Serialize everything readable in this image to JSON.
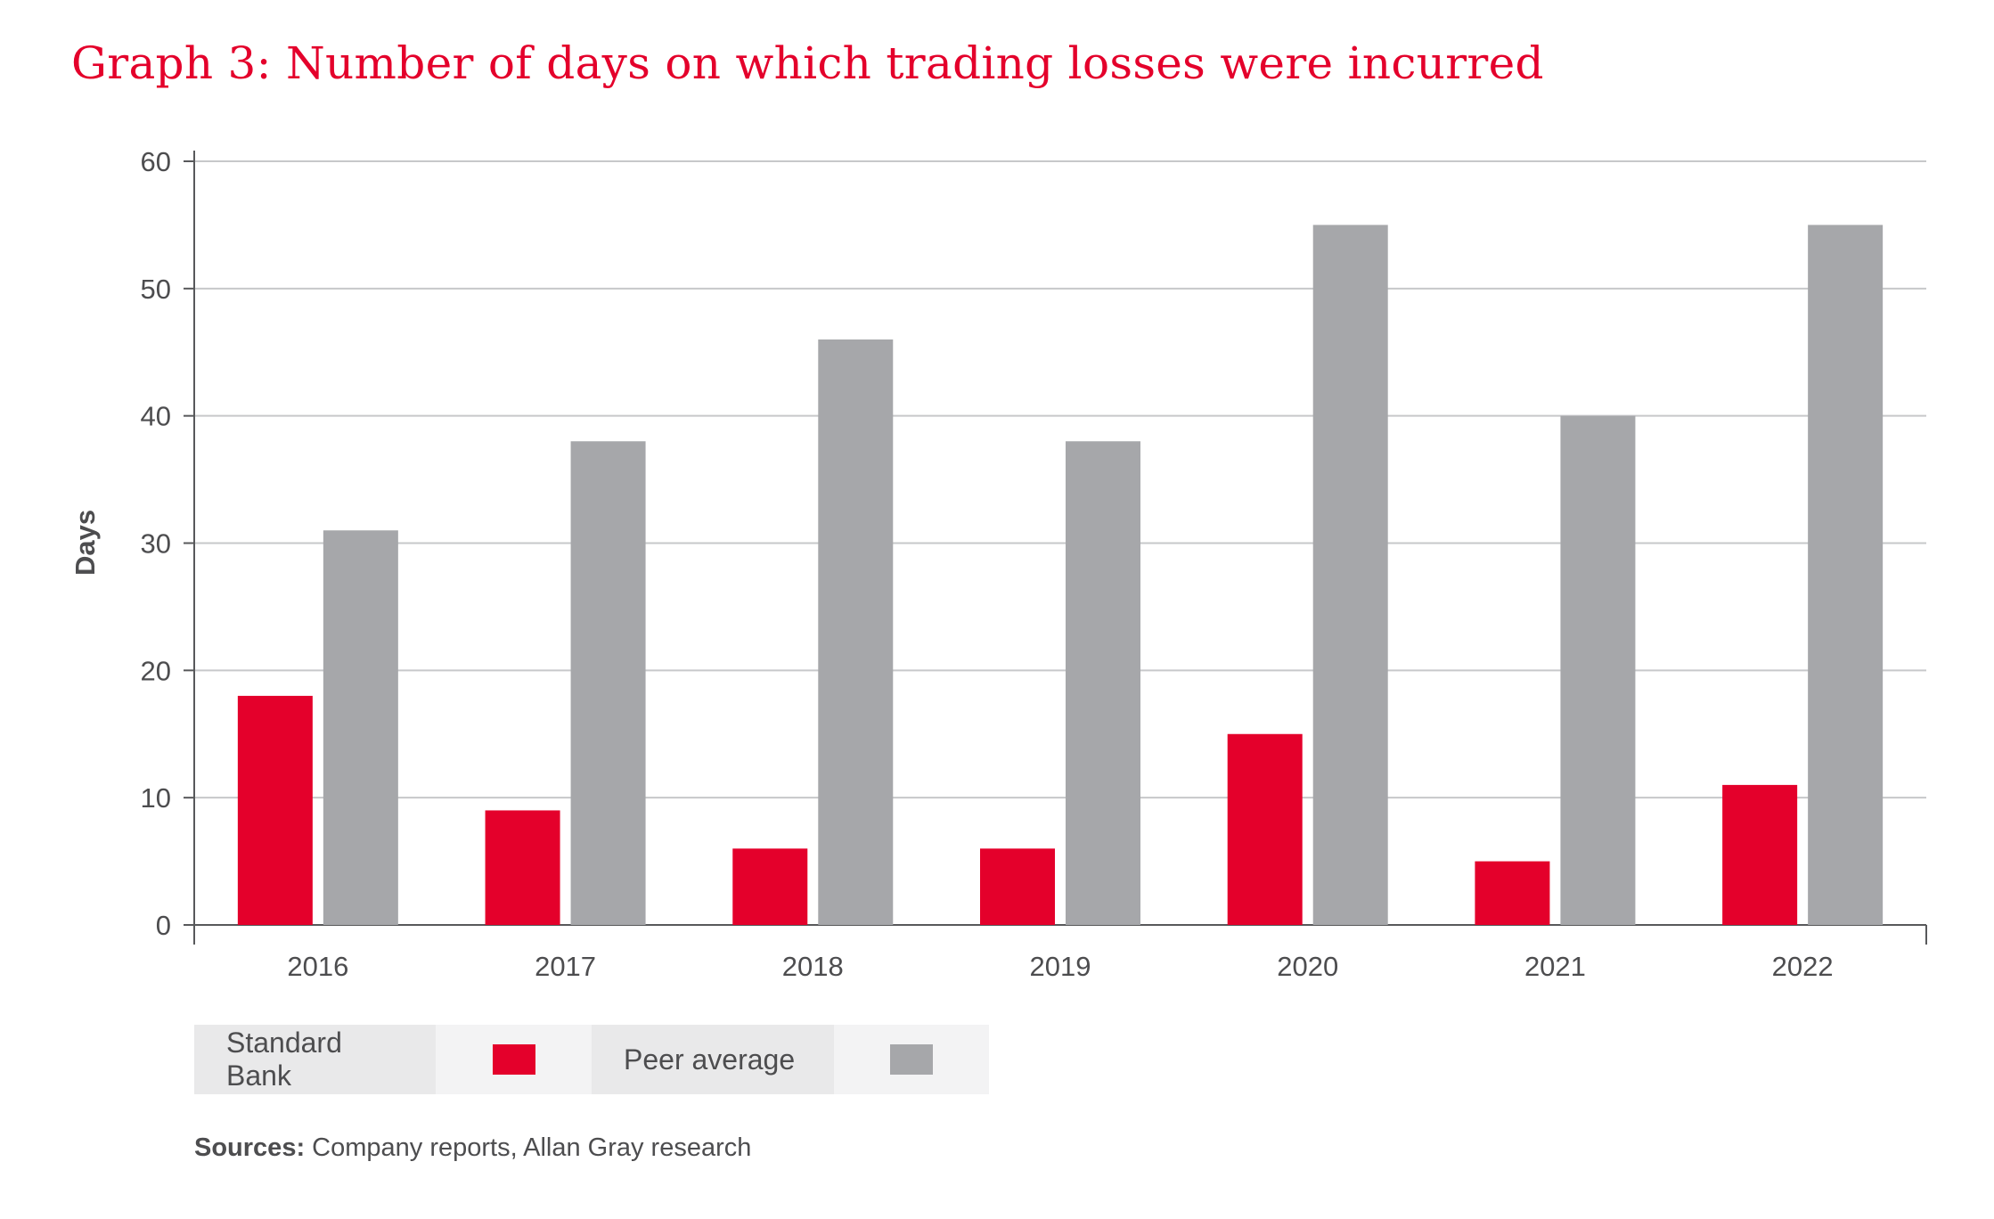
{
  "title": "Graph 3: Number of days on which trading losses were incurred",
  "colors": {
    "title": "#e4002b",
    "standard_bank": "#e4002b",
    "peer_average": "#a6a7aa",
    "grid": "#c7c8ca",
    "axis": "#58595b",
    "text": "#4d4d4f"
  },
  "chart_data": {
    "type": "bar",
    "title": "Graph 3: Number of days on which trading losses were incurred",
    "xlabel": "",
    "ylabel": "Days",
    "ylim": [
      0,
      60
    ],
    "yticks": [
      "0",
      "10",
      "20",
      "30",
      "40",
      "50",
      "60"
    ],
    "categories": [
      "2016",
      "2017",
      "2018",
      "2019",
      "2020",
      "2021",
      "2022"
    ],
    "series": [
      {
        "name": "Standard Bank",
        "values": [
          18,
          9,
          6,
          6,
          15,
          5,
          11
        ]
      },
      {
        "name": "Peer average",
        "values": [
          31,
          38,
          46,
          38,
          55,
          40,
          55
        ]
      }
    ],
    "grid": true,
    "legend_position": "bottom-left"
  },
  "legend": {
    "items": [
      "Standard Bank",
      "Peer average"
    ]
  },
  "sources": {
    "label": "Sources:",
    "text": " Company reports, Allan Gray research"
  }
}
